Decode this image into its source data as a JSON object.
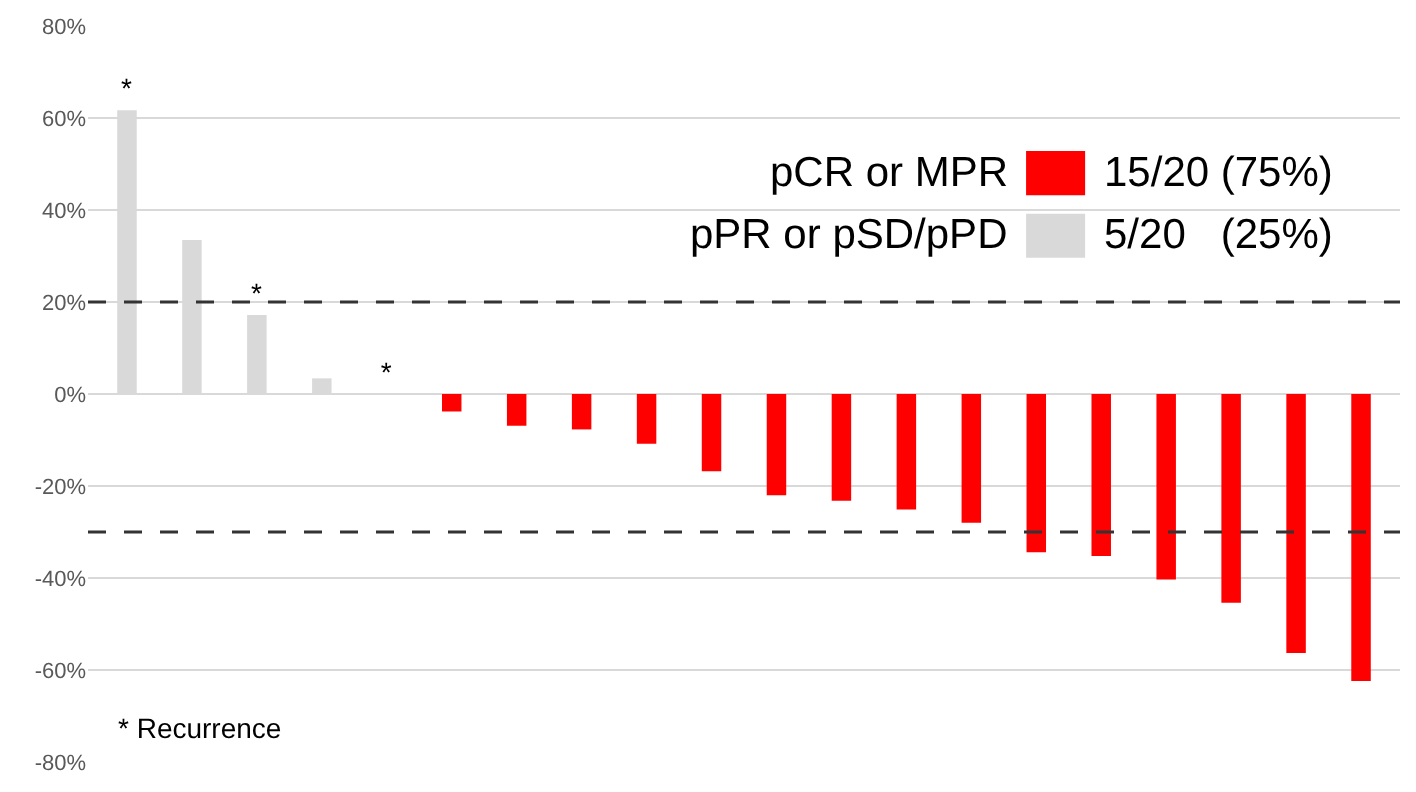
{
  "chart_data": {
    "type": "bar",
    "categories": [
      null,
      null,
      null,
      null,
      null,
      null,
      null,
      null,
      null,
      null,
      null,
      null,
      null,
      null,
      null,
      null,
      null,
      null,
      null,
      null
    ],
    "series": [
      {
        "name": "pCR or MPR",
        "color": "#ff0000",
        "values": [
          null,
          null,
          null,
          null,
          null,
          -3.8,
          -6.9,
          -7.7,
          -10.8,
          -16.8,
          -22,
          -23.2,
          -25.1,
          -28,
          -34.4,
          -35.2,
          -40.3,
          -45.4,
          -56.3,
          -62.4
        ]
      },
      {
        "name": "pPR or pSD/pPD",
        "color": "#d9d9d9",
        "values": [
          61.7,
          33.5,
          17.2,
          3.4,
          0,
          null,
          null,
          null,
          null,
          null,
          null,
          null,
          null,
          null,
          null,
          null,
          null,
          null,
          null,
          null
        ],
        "value_labels": [
          "*",
          null,
          "*",
          null,
          "*",
          null,
          null,
          null,
          null,
          null,
          null,
          null,
          null,
          null,
          null,
          null,
          null,
          null,
          null,
          null
        ]
      }
    ],
    "ylim": [
      -80,
      80
    ],
    "yticks": [
      {
        "value": -80,
        "label": "-80%"
      },
      {
        "value": -60,
        "label": "-60%"
      },
      {
        "value": -40,
        "label": "-40%"
      },
      {
        "value": -20,
        "label": "-20%"
      },
      {
        "value": 0,
        "label": "0%"
      },
      {
        "value": 20,
        "label": "20%"
      },
      {
        "value": 40,
        "label": "40%"
      },
      {
        "value": 60,
        "label": "60%"
      },
      {
        "value": 80,
        "label": "80%"
      }
    ],
    "grid": "y",
    "legend": "top right",
    "ref_lines": [
      {
        "axis": "y",
        "value": 20,
        "color": "#333333",
        "line_style": "dashed"
      },
      {
        "axis": "y",
        "value": -30,
        "color": "#333333",
        "line_style": "dashed"
      }
    ],
    "annotations": [
      "15/20 (75%)",
      "5/20   (25%)",
      "* Recurrence"
    ]
  }
}
